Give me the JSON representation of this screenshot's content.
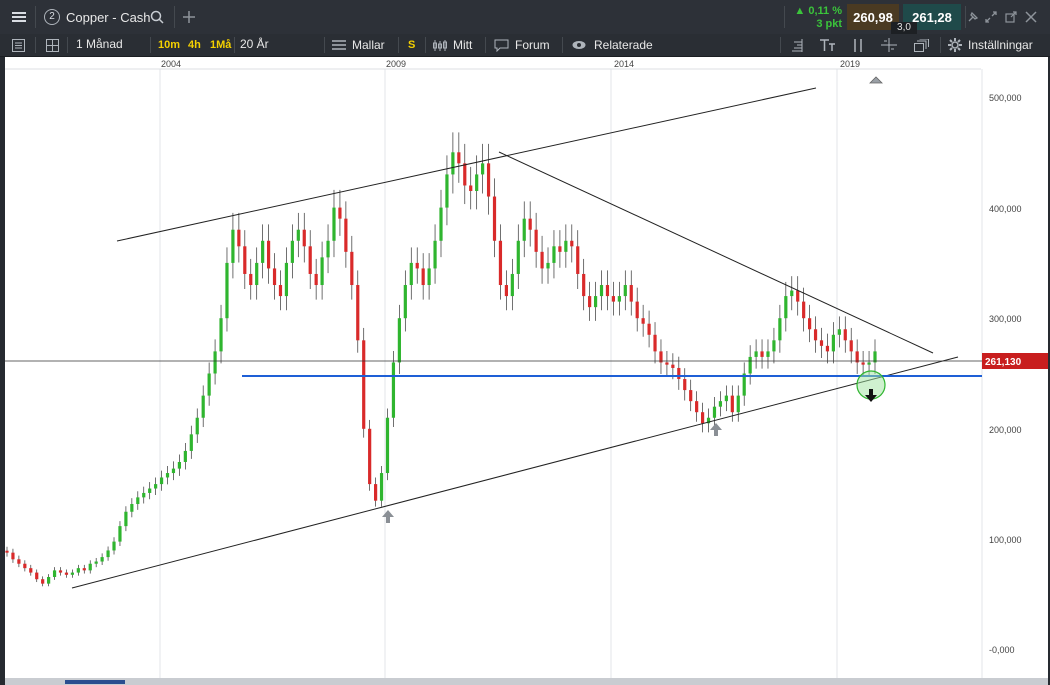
{
  "header": {
    "menu_icon": "hamburger-icon",
    "instrument_number": "2",
    "instrument_name": "Copper - Cash",
    "search_icon": "search-icon",
    "add_icon": "plus-icon",
    "change_pct": "0,11 %",
    "change_pts": "3 pkt",
    "bid": "260,98",
    "ask": "261,28",
    "spread": "3,0"
  },
  "toolbar": {
    "period": "1 Månad",
    "ranges": [
      "10m",
      "4h",
      "1Må"
    ],
    "timespan": "20 År",
    "templates": "Mallar",
    "s_label": "S",
    "mine": "Mitt",
    "forum": "Forum",
    "related": "Relaterade",
    "settings": "Inställningar"
  },
  "chart_data": {
    "type": "candlestick",
    "x_labels": [
      "2004",
      "2009",
      "2014",
      "2019"
    ],
    "y_ticks": [
      "500,000",
      "400,000",
      "300,000",
      "200,000",
      "100,000",
      "-0,000"
    ],
    "ylim": [
      0,
      520
    ],
    "current_price": "261,130",
    "horizontal_level": 245,
    "colors": {
      "up": "#2fb52f",
      "down": "#d92a2a",
      "level_line": "#1e5fd6",
      "price_tag": "#c81e1e"
    },
    "series": [
      {
        "v": [
          88,
          82,
          78,
          74,
          70,
          64,
          60,
          66,
          72,
          70,
          68,
          70,
          74,
          72,
          78,
          80,
          84,
          90,
          98,
          112,
          125,
          132,
          138,
          142,
          146,
          150,
          156,
          160,
          164,
          170,
          180,
          195,
          210,
          230,
          250,
          270,
          300,
          350,
          380,
          365,
          340,
          330,
          350,
          370,
          345,
          330,
          320,
          350,
          370,
          380,
          365,
          340,
          330,
          355,
          370,
          400,
          390,
          360,
          330,
          280,
          200,
          150,
          135,
          160,
          210,
          260,
          300,
          330,
          350,
          345,
          330,
          345,
          370,
          400,
          430,
          450,
          440,
          420,
          415,
          430,
          440,
          410,
          370,
          330,
          320,
          340,
          370,
          390,
          380,
          360,
          345,
          350,
          365,
          360,
          370,
          365,
          340,
          320,
          310,
          320,
          330,
          320,
          315,
          320,
          330,
          315,
          300,
          295,
          285,
          270,
          260,
          258,
          255,
          245,
          235,
          225,
          215,
          205,
          210,
          220,
          225,
          230,
          215,
          230,
          250,
          265,
          270,
          265,
          270,
          280,
          300,
          320,
          325,
          315,
          300,
          290,
          280,
          275,
          270,
          285,
          290,
          280,
          270,
          260,
          258,
          260,
          270
        ]
      }
    ]
  }
}
